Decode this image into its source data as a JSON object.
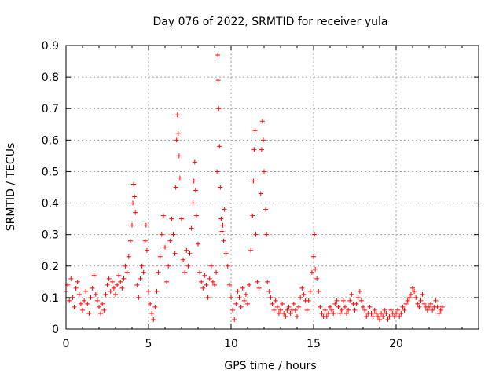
{
  "chart_data": {
    "type": "scatter",
    "title": "Day 076 of 2022, SRMTID for receiver yula",
    "xlabel": "GPS time / hours",
    "ylabel": "SRMTID / TECUs",
    "xlim": [
      0,
      25
    ],
    "ylim": [
      0,
      0.9
    ],
    "xticks": [
      0,
      5,
      10,
      15,
      20
    ],
    "yticks": [
      0,
      0.1,
      0.2,
      0.3,
      0.4,
      0.5,
      0.6,
      0.7,
      0.8,
      0.9
    ],
    "xtick_labels": [
      "0",
      "5",
      "10",
      "15",
      "20"
    ],
    "ytick_labels": [
      "0",
      "0.1",
      "0.2",
      "0.3",
      "0.4",
      "0.5",
      "0.6",
      "0.7",
      "0.8",
      "0.9"
    ],
    "grid": true,
    "marker": "+",
    "color": "#ff0000",
    "series": [
      {
        "name": "SRMTID",
        "points": [
          [
            0.0,
            0.12
          ],
          [
            0.1,
            0.14
          ],
          [
            0.2,
            0.09
          ],
          [
            0.3,
            0.16
          ],
          [
            0.4,
            0.1
          ],
          [
            0.5,
            0.07
          ],
          [
            0.6,
            0.13
          ],
          [
            0.7,
            0.15
          ],
          [
            0.8,
            0.11
          ],
          [
            0.9,
            0.08
          ],
          [
            1.0,
            0.06
          ],
          [
            1.1,
            0.09
          ],
          [
            1.2,
            0.12
          ],
          [
            1.3,
            0.08
          ],
          [
            1.4,
            0.05
          ],
          [
            1.5,
            0.1
          ],
          [
            1.6,
            0.13
          ],
          [
            1.7,
            0.17
          ],
          [
            1.8,
            0.11
          ],
          [
            1.9,
            0.09
          ],
          [
            2.0,
            0.07
          ],
          [
            2.1,
            0.05
          ],
          [
            2.2,
            0.08
          ],
          [
            2.3,
            0.06
          ],
          [
            2.4,
            0.11
          ],
          [
            2.5,
            0.14
          ],
          [
            2.6,
            0.16
          ],
          [
            2.7,
            0.12
          ],
          [
            2.8,
            0.15
          ],
          [
            2.9,
            0.13
          ],
          [
            3.0,
            0.11
          ],
          [
            3.1,
            0.14
          ],
          [
            3.2,
            0.17
          ],
          [
            3.3,
            0.15
          ],
          [
            3.4,
            0.13
          ],
          [
            3.5,
            0.16
          ],
          [
            3.6,
            0.2
          ],
          [
            3.7,
            0.18
          ],
          [
            3.8,
            0.23
          ],
          [
            3.9,
            0.28
          ],
          [
            4.0,
            0.33
          ],
          [
            4.05,
            0.4
          ],
          [
            4.1,
            0.46
          ],
          [
            4.15,
            0.42
          ],
          [
            4.2,
            0.37
          ],
          [
            4.3,
            0.14
          ],
          [
            4.4,
            0.1
          ],
          [
            4.5,
            0.16
          ],
          [
            4.6,
            0.2
          ],
          [
            4.7,
            0.18
          ],
          [
            4.8,
            0.28
          ],
          [
            4.85,
            0.33
          ],
          [
            4.9,
            0.25
          ],
          [
            5.0,
            0.12
          ],
          [
            5.1,
            0.08
          ],
          [
            5.2,
            0.05
          ],
          [
            5.3,
            0.03
          ],
          [
            5.4,
            0.07
          ],
          [
            5.5,
            0.12
          ],
          [
            5.6,
            0.18
          ],
          [
            5.7,
            0.23
          ],
          [
            5.8,
            0.3
          ],
          [
            5.9,
            0.36
          ],
          [
            6.0,
            0.26
          ],
          [
            6.1,
            0.15
          ],
          [
            6.2,
            0.2
          ],
          [
            6.3,
            0.28
          ],
          [
            6.4,
            0.35
          ],
          [
            6.5,
            0.3
          ],
          [
            6.6,
            0.24
          ],
          [
            6.65,
            0.45
          ],
          [
            6.7,
            0.6
          ],
          [
            6.75,
            0.68
          ],
          [
            6.8,
            0.62
          ],
          [
            6.85,
            0.55
          ],
          [
            6.9,
            0.48
          ],
          [
            7.0,
            0.35
          ],
          [
            7.1,
            0.22
          ],
          [
            7.2,
            0.18
          ],
          [
            7.3,
            0.25
          ],
          [
            7.4,
            0.2
          ],
          [
            7.5,
            0.24
          ],
          [
            7.6,
            0.32
          ],
          [
            7.7,
            0.4
          ],
          [
            7.75,
            0.47
          ],
          [
            7.8,
            0.53
          ],
          [
            7.85,
            0.44
          ],
          [
            7.9,
            0.36
          ],
          [
            8.0,
            0.27
          ],
          [
            8.1,
            0.18
          ],
          [
            8.2,
            0.15
          ],
          [
            8.3,
            0.13
          ],
          [
            8.4,
            0.17
          ],
          [
            8.5,
            0.14
          ],
          [
            8.6,
            0.1
          ],
          [
            8.7,
            0.16
          ],
          [
            8.8,
            0.2
          ],
          [
            8.9,
            0.15
          ],
          [
            9.0,
            0.14
          ],
          [
            9.1,
            0.18
          ],
          [
            9.15,
            0.5
          ],
          [
            9.2,
            0.87
          ],
          [
            9.22,
            0.79
          ],
          [
            9.25,
            0.7
          ],
          [
            9.3,
            0.58
          ],
          [
            9.35,
            0.45
          ],
          [
            9.4,
            0.35
          ],
          [
            9.45,
            0.31
          ],
          [
            9.5,
            0.33
          ],
          [
            9.55,
            0.28
          ],
          [
            9.6,
            0.38
          ],
          [
            9.7,
            0.24
          ],
          [
            9.8,
            0.2
          ],
          [
            9.9,
            0.14
          ],
          [
            10.0,
            0.1
          ],
          [
            10.1,
            0.06
          ],
          [
            10.2,
            0.03
          ],
          [
            10.3,
            0.08
          ],
          [
            10.4,
            0.12
          ],
          [
            10.5,
            0.1
          ],
          [
            10.6,
            0.07
          ],
          [
            10.7,
            0.13
          ],
          [
            10.8,
            0.09
          ],
          [
            10.9,
            0.11
          ],
          [
            11.0,
            0.08
          ],
          [
            11.1,
            0.14
          ],
          [
            11.2,
            0.25
          ],
          [
            11.3,
            0.36
          ],
          [
            11.35,
            0.47
          ],
          [
            11.4,
            0.57
          ],
          [
            11.45,
            0.63
          ],
          [
            11.5,
            0.3
          ],
          [
            11.6,
            0.15
          ],
          [
            11.7,
            0.13
          ],
          [
            11.8,
            0.43
          ],
          [
            11.85,
            0.57
          ],
          [
            11.9,
            0.66
          ],
          [
            11.95,
            0.6
          ],
          [
            12.0,
            0.5
          ],
          [
            12.1,
            0.38
          ],
          [
            12.15,
            0.3
          ],
          [
            12.2,
            0.15
          ],
          [
            12.3,
            0.12
          ],
          [
            12.4,
            0.1
          ],
          [
            12.5,
            0.08
          ],
          [
            12.6,
            0.06
          ],
          [
            12.7,
            0.09
          ],
          [
            12.8,
            0.07
          ],
          [
            12.9,
            0.05
          ],
          [
            13.0,
            0.06
          ],
          [
            13.1,
            0.08
          ],
          [
            13.2,
            0.05
          ],
          [
            13.3,
            0.04
          ],
          [
            13.4,
            0.06
          ],
          [
            13.5,
            0.07
          ],
          [
            13.6,
            0.05
          ],
          [
            13.7,
            0.06
          ],
          [
            13.8,
            0.08
          ],
          [
            13.9,
            0.06
          ],
          [
            14.0,
            0.04
          ],
          [
            14.1,
            0.07
          ],
          [
            14.2,
            0.1
          ],
          [
            14.3,
            0.13
          ],
          [
            14.4,
            0.11
          ],
          [
            14.5,
            0.09
          ],
          [
            14.6,
            0.06
          ],
          [
            14.7,
            0.09
          ],
          [
            14.8,
            0.12
          ],
          [
            14.9,
            0.18
          ],
          [
            15.0,
            0.23
          ],
          [
            15.05,
            0.3
          ],
          [
            15.1,
            0.19
          ],
          [
            15.2,
            0.16
          ],
          [
            15.3,
            0.12
          ],
          [
            15.4,
            0.07
          ],
          [
            15.5,
            0.05
          ],
          [
            15.6,
            0.04
          ],
          [
            15.7,
            0.06
          ],
          [
            15.8,
            0.04
          ],
          [
            15.9,
            0.05
          ],
          [
            16.0,
            0.07
          ],
          [
            16.1,
            0.06
          ],
          [
            16.2,
            0.05
          ],
          [
            16.3,
            0.08
          ],
          [
            16.4,
            0.09
          ],
          [
            16.5,
            0.07
          ],
          [
            16.6,
            0.05
          ],
          [
            16.7,
            0.06
          ],
          [
            16.8,
            0.09
          ],
          [
            16.9,
            0.07
          ],
          [
            17.0,
            0.05
          ],
          [
            17.1,
            0.06
          ],
          [
            17.2,
            0.09
          ],
          [
            17.3,
            0.11
          ],
          [
            17.4,
            0.08
          ],
          [
            17.5,
            0.06
          ],
          [
            17.6,
            0.08
          ],
          [
            17.7,
            0.1
          ],
          [
            17.8,
            0.12
          ],
          [
            17.9,
            0.09
          ],
          [
            18.0,
            0.07
          ],
          [
            18.1,
            0.06
          ],
          [
            18.2,
            0.04
          ],
          [
            18.3,
            0.05
          ],
          [
            18.4,
            0.07
          ],
          [
            18.5,
            0.05
          ],
          [
            18.6,
            0.04
          ],
          [
            18.7,
            0.06
          ],
          [
            18.8,
            0.05
          ],
          [
            18.9,
            0.04
          ],
          [
            19.0,
            0.03
          ],
          [
            19.1,
            0.05
          ],
          [
            19.2,
            0.04
          ],
          [
            19.3,
            0.06
          ],
          [
            19.4,
            0.05
          ],
          [
            19.5,
            0.03
          ],
          [
            19.6,
            0.04
          ],
          [
            19.7,
            0.06
          ],
          [
            19.8,
            0.05
          ],
          [
            19.9,
            0.04
          ],
          [
            20.0,
            0.05
          ],
          [
            20.1,
            0.06
          ],
          [
            20.2,
            0.04
          ],
          [
            20.3,
            0.05
          ],
          [
            20.4,
            0.07
          ],
          [
            20.5,
            0.06
          ],
          [
            20.6,
            0.08
          ],
          [
            20.7,
            0.09
          ],
          [
            20.8,
            0.1
          ],
          [
            20.9,
            0.11
          ],
          [
            21.0,
            0.13
          ],
          [
            21.1,
            0.12
          ],
          [
            21.2,
            0.1
          ],
          [
            21.3,
            0.08
          ],
          [
            21.4,
            0.07
          ],
          [
            21.5,
            0.09
          ],
          [
            21.6,
            0.11
          ],
          [
            21.7,
            0.08
          ],
          [
            21.8,
            0.07
          ],
          [
            21.9,
            0.06
          ],
          [
            22.0,
            0.07
          ],
          [
            22.1,
            0.08
          ],
          [
            22.2,
            0.06
          ],
          [
            22.3,
            0.07
          ],
          [
            22.4,
            0.09
          ],
          [
            22.5,
            0.07
          ],
          [
            22.6,
            0.05
          ],
          [
            22.7,
            0.06
          ],
          [
            22.8,
            0.07
          ]
        ]
      }
    ]
  }
}
